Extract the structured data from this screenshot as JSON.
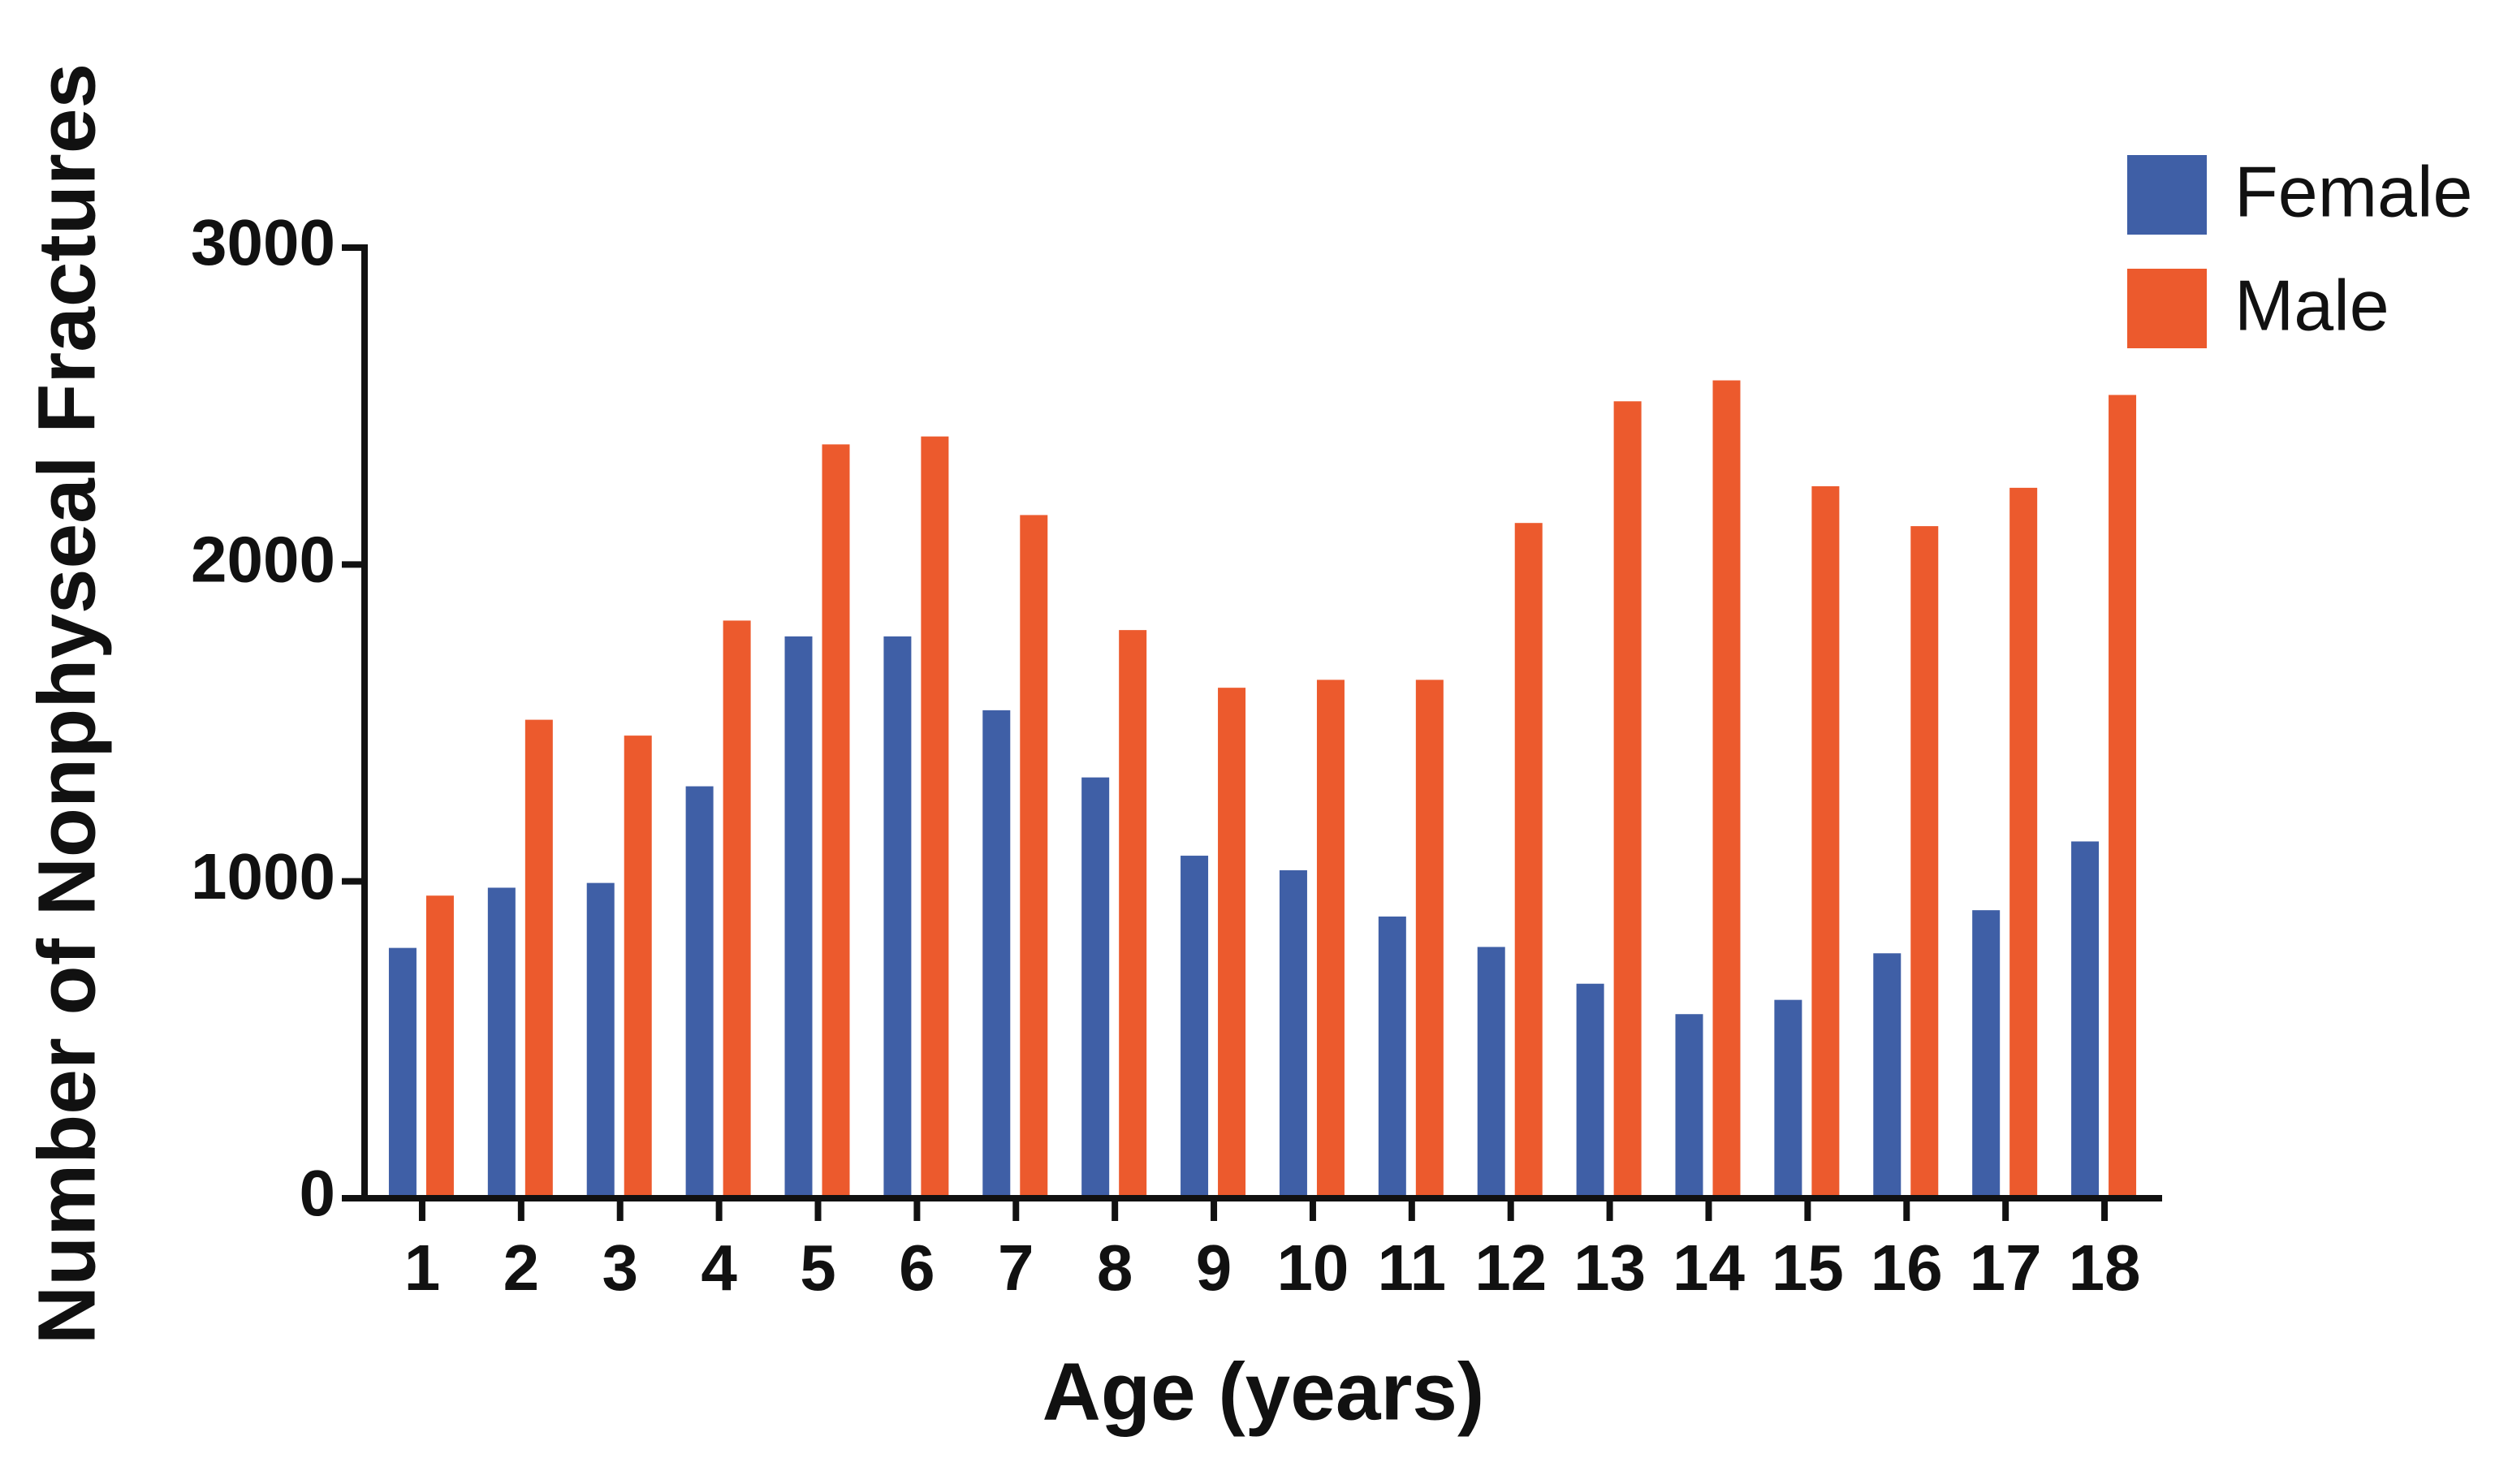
{
  "chart_data": {
    "type": "bar",
    "x_label": "Age (years)",
    "y_label": "Number of Nonphyseal Fractures",
    "categories": [
      "1",
      "2",
      "3",
      "4",
      "5",
      "6",
      "7",
      "8",
      "9",
      "10",
      "11",
      "12",
      "13",
      "14",
      "15",
      "16",
      "17",
      "18"
    ],
    "series": [
      {
        "name": "Female",
        "color": "#3f5fa6",
        "values": [
          790,
          980,
          995,
          1300,
          1773,
          1773,
          1540,
          1328,
          1081,
          1035,
          889,
          793,
          677,
          581,
          626,
          773,
          909,
          1126
        ]
      },
      {
        "name": "Male",
        "color": "#ec5a2d",
        "values": [
          955,
          1510,
          1460,
          1823,
          2379,
          2404,
          2156,
          1793,
          1611,
          1636,
          1636,
          2131,
          2515,
          2581,
          2247,
          2121,
          2242,
          2535
        ]
      }
    ],
    "ylim": [
      0,
      3000
    ],
    "yticks": [
      0,
      1000,
      2000,
      3000
    ],
    "legend": "top-right"
  }
}
